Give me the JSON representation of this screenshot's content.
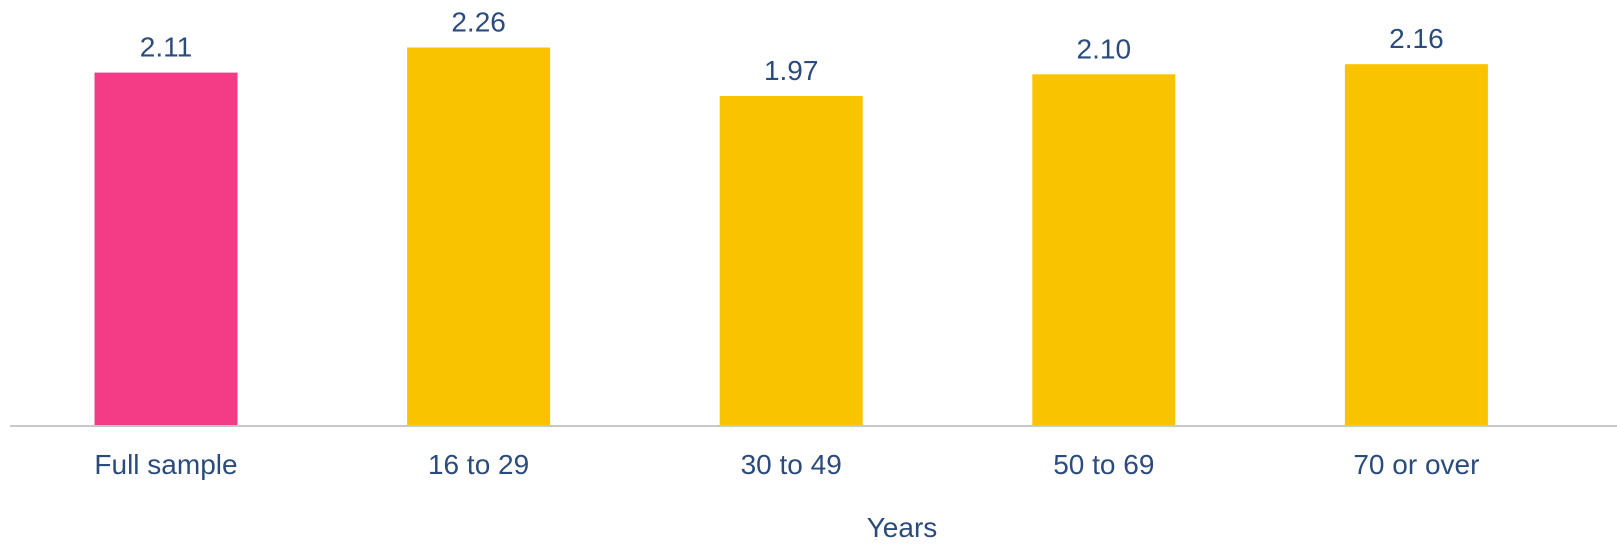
{
  "chart_data": {
    "type": "bar",
    "title": "",
    "xlabel": "Years",
    "ylabel": "",
    "categories": [
      "Full sample",
      "16 to 29",
      "30 to 49",
      "50 to 69",
      "70 or over"
    ],
    "values": [
      2.11,
      2.26,
      1.97,
      2.1,
      2.16
    ],
    "value_labels": [
      "2.11",
      "2.26",
      "1.97",
      "2.10",
      "2.16"
    ],
    "ylim": [
      0,
      2.5
    ],
    "grid": false,
    "legend": "none",
    "colors": {
      "highlight": "#F43B86",
      "default": "#F9C300",
      "text": "#2B4B7C",
      "axis": "#C8C8C8"
    },
    "highlight_index": 0
  }
}
